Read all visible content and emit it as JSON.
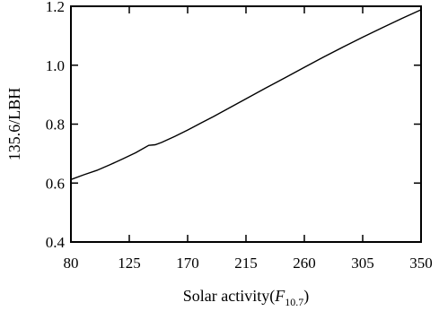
{
  "chart_data": {
    "type": "line",
    "xlabel": {
      "main": "Solar activity(",
      "italic": "F",
      "subscript": "10.7",
      "close": ")"
    },
    "ylabel": "135.6/LBH",
    "xlim": [
      80,
      350
    ],
    "ylim": [
      0.4,
      1.2
    ],
    "xticks": [
      80,
      125,
      170,
      215,
      260,
      305,
      350
    ],
    "yticks": [
      0.4,
      0.6,
      0.8,
      1.0,
      1.2
    ],
    "xtick_labels": [
      "80",
      "125",
      "170",
      "215",
      "260",
      "305",
      "350"
    ],
    "ytick_labels": [
      "0.4",
      "0.6",
      "0.8",
      "1.0",
      "1.2"
    ],
    "grid": false,
    "series": [
      {
        "color": "#000000",
        "x": [
          80,
          90,
          100,
          110,
          120,
          130,
          140,
          145,
          150,
          160,
          170,
          180,
          190,
          200,
          215,
          230,
          245,
          260,
          275,
          290,
          305,
          320,
          335,
          350
        ],
        "y": [
          0.612,
          0.628,
          0.643,
          0.662,
          0.682,
          0.703,
          0.728,
          0.73,
          0.738,
          0.758,
          0.78,
          0.803,
          0.826,
          0.85,
          0.886,
          0.922,
          0.957,
          0.993,
          1.028,
          1.062,
          1.095,
          1.127,
          1.158,
          1.188
        ]
      }
    ]
  }
}
